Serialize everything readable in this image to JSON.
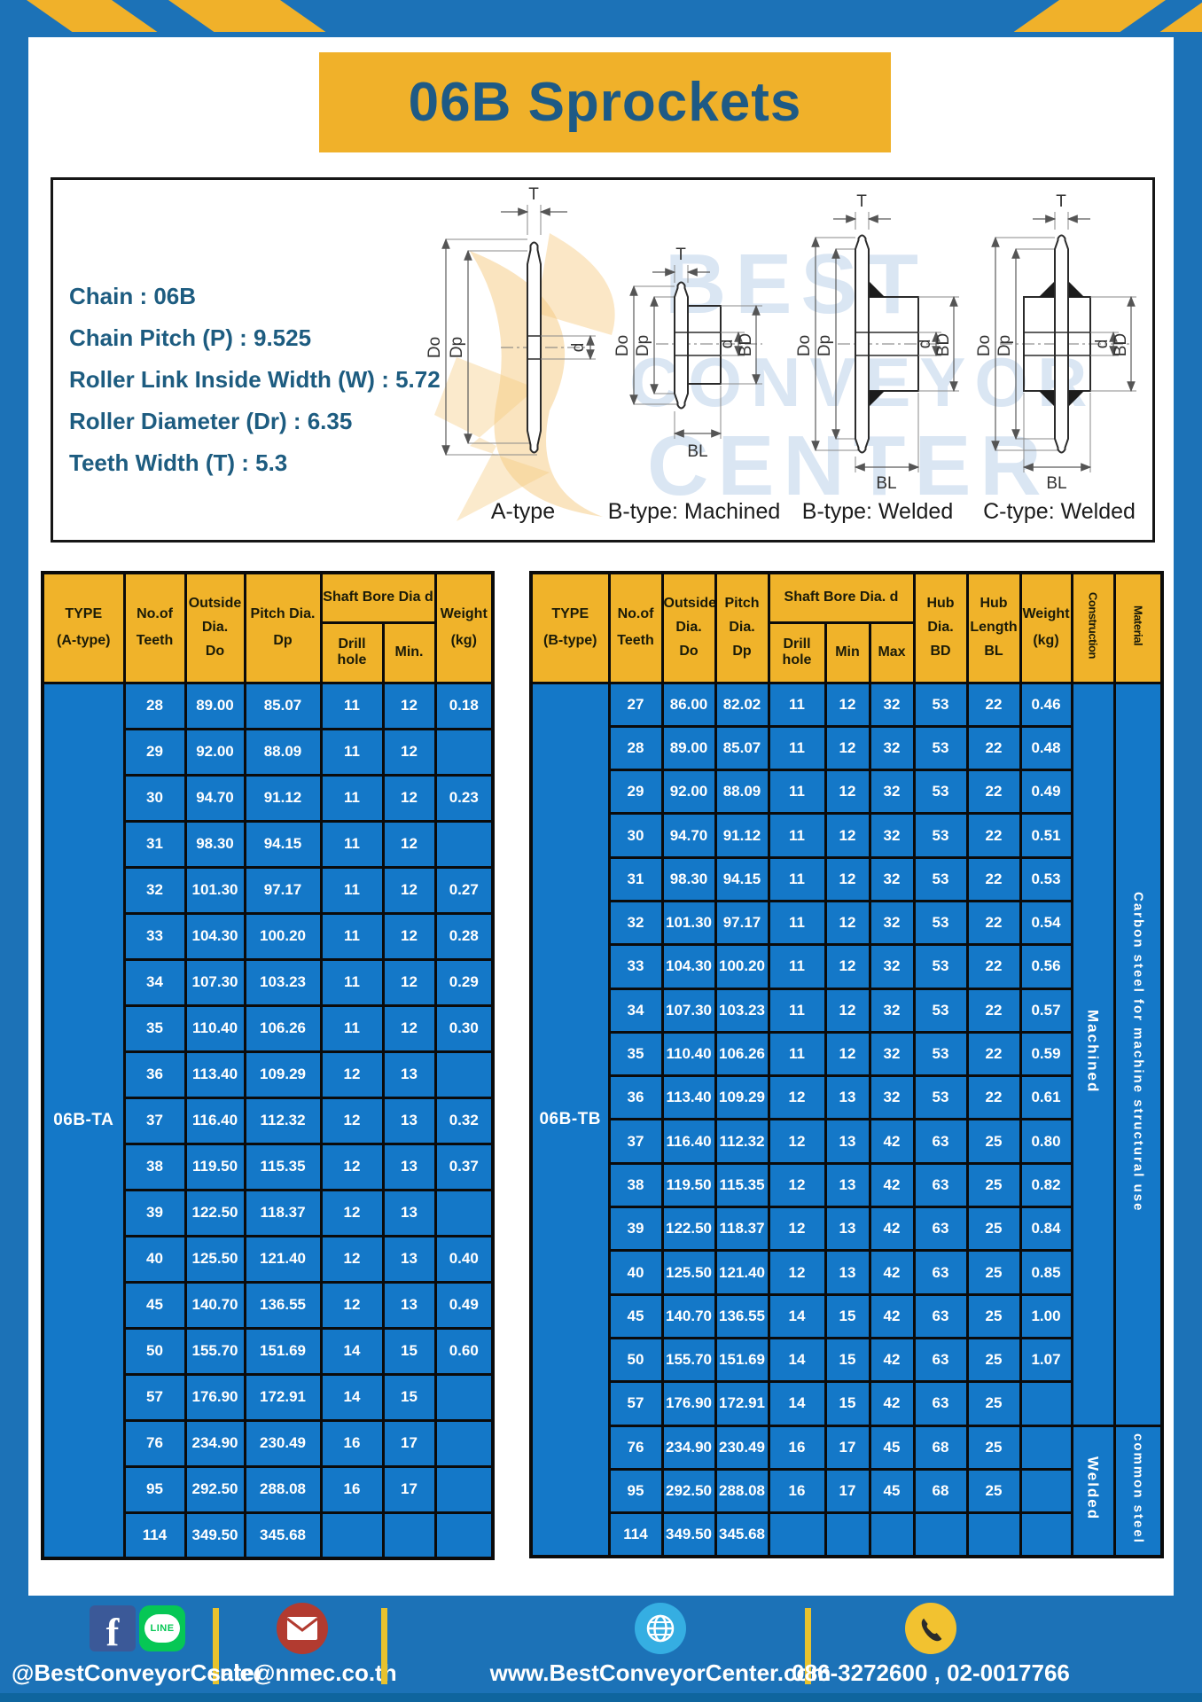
{
  "page": {
    "title": "06B Sprockets"
  },
  "specs": {
    "lines": [
      "Chain : 06B",
      "Chain Pitch (P) : 9.525",
      "Roller Link Inside Width (W) : 5.72",
      "Roller Diameter (Dr) : 6.35",
      "Teeth Width (T) : 5.3"
    ]
  },
  "diagram": {
    "dims": {
      "t": "T",
      "do": "Do",
      "dp": "Dp",
      "d": "d",
      "bd": "BD",
      "bl": "BL"
    },
    "captions": [
      "A-type",
      "B-type: Machined",
      "B-type: Welded",
      "C-type: Welded"
    ],
    "watermark": [
      "BEST",
      "CONVEYOR",
      "CENTER"
    ]
  },
  "tables": {
    "left": {
      "type_label": "06B-TA",
      "header": {
        "type": [
          "TYPE",
          "(A-type)"
        ],
        "teeth": [
          "No.of",
          "Teeth"
        ],
        "outside": [
          "Outside",
          "Dia.",
          "Do"
        ],
        "pitch": [
          "Pitch Dia.",
          "Dp"
        ],
        "bore_group": "Shaft Bore Dia d",
        "drill": "Drill hole",
        "min": "Min.",
        "weight": [
          "Weight",
          "(kg)"
        ]
      },
      "rows": [
        [
          "28",
          "89.00",
          "85.07",
          "11",
          "12",
          "0.18"
        ],
        [
          "29",
          "92.00",
          "88.09",
          "11",
          "12",
          ""
        ],
        [
          "30",
          "94.70",
          "91.12",
          "11",
          "12",
          "0.23"
        ],
        [
          "31",
          "98.30",
          "94.15",
          "11",
          "12",
          ""
        ],
        [
          "32",
          "101.30",
          "97.17",
          "11",
          "12",
          "0.27"
        ],
        [
          "33",
          "104.30",
          "100.20",
          "11",
          "12",
          "0.28"
        ],
        [
          "34",
          "107.30",
          "103.23",
          "11",
          "12",
          "0.29"
        ],
        [
          "35",
          "110.40",
          "106.26",
          "11",
          "12",
          "0.30"
        ],
        [
          "36",
          "113.40",
          "109.29",
          "12",
          "13",
          ""
        ],
        [
          "37",
          "116.40",
          "112.32",
          "12",
          "13",
          "0.32"
        ],
        [
          "38",
          "119.50",
          "115.35",
          "12",
          "13",
          "0.37"
        ],
        [
          "39",
          "122.50",
          "118.37",
          "12",
          "13",
          ""
        ],
        [
          "40",
          "125.50",
          "121.40",
          "12",
          "13",
          "0.40"
        ],
        [
          "45",
          "140.70",
          "136.55",
          "12",
          "13",
          "0.49"
        ],
        [
          "50",
          "155.70",
          "151.69",
          "14",
          "15",
          "0.60"
        ],
        [
          "57",
          "176.90",
          "172.91",
          "14",
          "15",
          ""
        ],
        [
          "76",
          "234.90",
          "230.49",
          "16",
          "17",
          ""
        ],
        [
          "95",
          "292.50",
          "288.08",
          "16",
          "17",
          ""
        ],
        [
          "114",
          "349.50",
          "345.68",
          "",
          "",
          ""
        ]
      ]
    },
    "right": {
      "type_label": "06B-TB",
      "header": {
        "type": [
          "TYPE",
          "(B-type)"
        ],
        "teeth": [
          "No.of",
          "Teeth"
        ],
        "outside": [
          "Outside",
          "Dia.",
          "Do"
        ],
        "pitch": [
          "Pitch",
          "Dia.",
          "Dp"
        ],
        "bore_group": "Shaft Bore Dia. d",
        "drill": "Drill hole",
        "min": "Min",
        "max": "Max",
        "hub_dia": [
          "Hub",
          "Dia.",
          "BD"
        ],
        "hub_len": [
          "Hub",
          "Length",
          "BL"
        ],
        "weight": [
          "Weight",
          "(kg)"
        ],
        "construction": "Construction",
        "material": "Material"
      },
      "construction_groups": [
        {
          "label": "Machined",
          "material": "Carbon steel for machine structural use",
          "span": 17
        },
        {
          "label": "Welded",
          "material": "common steel",
          "span": 3
        }
      ],
      "rows": [
        [
          "27",
          "86.00",
          "82.02",
          "11",
          "12",
          "32",
          "53",
          "22",
          "0.46"
        ],
        [
          "28",
          "89.00",
          "85.07",
          "11",
          "12",
          "32",
          "53",
          "22",
          "0.48"
        ],
        [
          "29",
          "92.00",
          "88.09",
          "11",
          "12",
          "32",
          "53",
          "22",
          "0.49"
        ],
        [
          "30",
          "94.70",
          "91.12",
          "11",
          "12",
          "32",
          "53",
          "22",
          "0.51"
        ],
        [
          "31",
          "98.30",
          "94.15",
          "11",
          "12",
          "32",
          "53",
          "22",
          "0.53"
        ],
        [
          "32",
          "101.30",
          "97.17",
          "11",
          "12",
          "32",
          "53",
          "22",
          "0.54"
        ],
        [
          "33",
          "104.30",
          "100.20",
          "11",
          "12",
          "32",
          "53",
          "22",
          "0.56"
        ],
        [
          "34",
          "107.30",
          "103.23",
          "11",
          "12",
          "32",
          "53",
          "22",
          "0.57"
        ],
        [
          "35",
          "110.40",
          "106.26",
          "11",
          "12",
          "32",
          "53",
          "22",
          "0.59"
        ],
        [
          "36",
          "113.40",
          "109.29",
          "12",
          "13",
          "32",
          "53",
          "22",
          "0.61"
        ],
        [
          "37",
          "116.40",
          "112.32",
          "12",
          "13",
          "42",
          "63",
          "25",
          "0.80"
        ],
        [
          "38",
          "119.50",
          "115.35",
          "12",
          "13",
          "42",
          "63",
          "25",
          "0.82"
        ],
        [
          "39",
          "122.50",
          "118.37",
          "12",
          "13",
          "42",
          "63",
          "25",
          "0.84"
        ],
        [
          "40",
          "125.50",
          "121.40",
          "12",
          "13",
          "42",
          "63",
          "25",
          "0.85"
        ],
        [
          "45",
          "140.70",
          "136.55",
          "14",
          "15",
          "42",
          "63",
          "25",
          "1.00"
        ],
        [
          "50",
          "155.70",
          "151.69",
          "14",
          "15",
          "42",
          "63",
          "25",
          "1.07"
        ],
        [
          "57",
          "176.90",
          "172.91",
          "14",
          "15",
          "42",
          "63",
          "25",
          ""
        ],
        [
          "76",
          "234.90",
          "230.49",
          "16",
          "17",
          "45",
          "68",
          "25",
          ""
        ],
        [
          "95",
          "292.50",
          "288.08",
          "16",
          "17",
          "45",
          "68",
          "25",
          ""
        ],
        [
          "114",
          "349.50",
          "345.68",
          "",
          "",
          "",
          "",
          "",
          ""
        ]
      ]
    }
  },
  "footer": {
    "facebook_label": "f",
    "line_label": "LINE",
    "social_handle": "@BestConveyorCenter",
    "email": "sale@nmec.co.th",
    "website": "www.BestConveyorCenter.com",
    "phones": "086-3272600 , 02-0017766"
  },
  "colors": {
    "frame_blue": "#1C72B7",
    "table_blue": "#1478C8",
    "accent_yellow": "#F0B12A",
    "title_text": "#1E5A85"
  }
}
